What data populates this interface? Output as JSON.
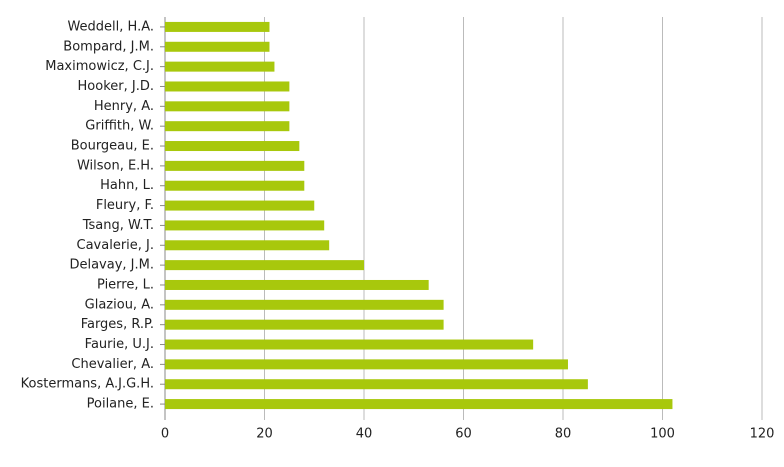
{
  "chart_data": {
    "type": "barh",
    "categories": [
      "Weddell, H.A.",
      "Bompard, J.M.",
      "Maximowicz, C.J.",
      "Hooker, J.D.",
      "Henry, A.",
      "Griffith, W.",
      "Bourgeau, E.",
      "Wilson, E.H.",
      "Hahn, L.",
      "Fleury, F.",
      "Tsang, W.T.",
      "Cavalerie, J.",
      "Delavay, J.M.",
      "Pierre, L.",
      "Glaziou, A.",
      "Farges, R.P.",
      "Faurie, U.J.",
      "Chevalier, A.",
      "Kostermans, A.J.G.H.",
      "Poilane, E."
    ],
    "values": [
      21,
      21,
      22,
      25,
      25,
      25,
      27,
      28,
      28,
      30,
      32,
      33,
      40,
      53,
      56,
      56,
      74,
      81,
      85,
      102
    ],
    "color": "#a8c80c",
    "xlim": [
      0,
      120
    ],
    "xticks": [
      0,
      20,
      40,
      60,
      80,
      100,
      120
    ],
    "grid": true
  }
}
